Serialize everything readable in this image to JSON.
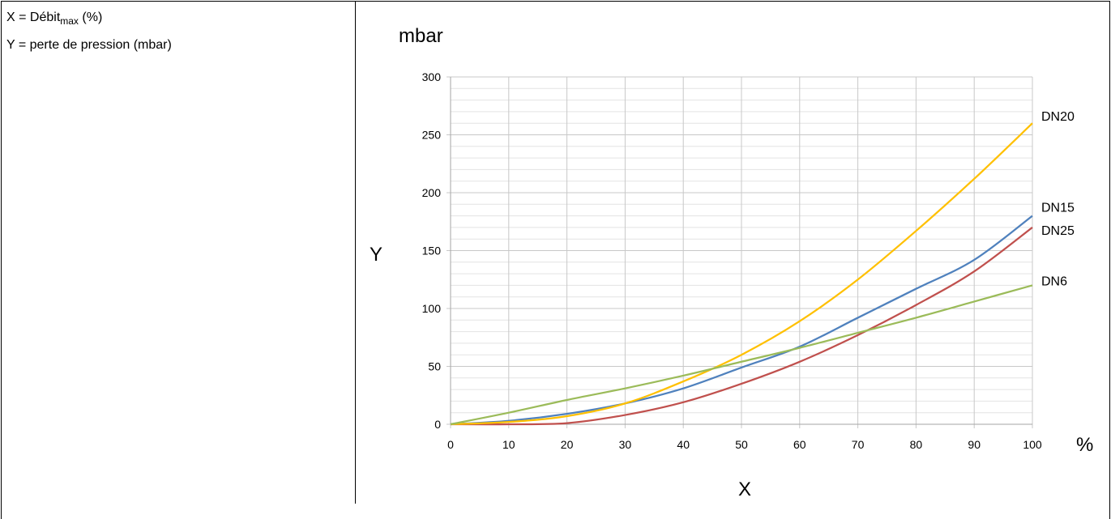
{
  "legend": {
    "x_prefix": "X = Débit",
    "x_sub": "max",
    "x_suffix": " (%)",
    "y_line": "Y = perte de pression (mbar)"
  },
  "chart_data": {
    "type": "line",
    "unit_label": "mbar",
    "ylabel": "Y",
    "xlabel": "X",
    "x_unit": "%",
    "xlim": [
      0,
      100
    ],
    "ylim": [
      0,
      300
    ],
    "xticks": [
      0,
      10,
      20,
      30,
      40,
      50,
      60,
      70,
      80,
      90,
      100
    ],
    "yticks": [
      0,
      50,
      100,
      150,
      200,
      250,
      300
    ],
    "grid": true,
    "series": [
      {
        "name": "DN20",
        "color": "#FFC000",
        "x": [
          0,
          10,
          20,
          30,
          40,
          50,
          60,
          70,
          80,
          90,
          100
        ],
        "y": [
          0,
          2,
          7,
          18,
          37,
          60,
          89,
          125,
          167,
          212,
          260
        ]
      },
      {
        "name": "DN15",
        "color": "#4F81BD",
        "x": [
          0,
          10,
          20,
          30,
          40,
          50,
          60,
          70,
          80,
          90,
          100
        ],
        "y": [
          0,
          3,
          9,
          18,
          31,
          49,
          67,
          92,
          117,
          142,
          180
        ]
      },
      {
        "name": "DN25",
        "color": "#C0504D",
        "x": [
          0,
          10,
          20,
          30,
          40,
          50,
          60,
          70,
          80,
          90,
          100
        ],
        "y": [
          0,
          0,
          1,
          8,
          19,
          35,
          54,
          77,
          103,
          132,
          170
        ]
      },
      {
        "name": "DN6",
        "color": "#9BBB59",
        "x": [
          0,
          10,
          20,
          30,
          40,
          50,
          60,
          70,
          80,
          90,
          100
        ],
        "y": [
          0,
          10,
          21,
          31,
          42,
          54,
          66,
          79,
          92,
          106,
          120
        ]
      }
    ]
  }
}
